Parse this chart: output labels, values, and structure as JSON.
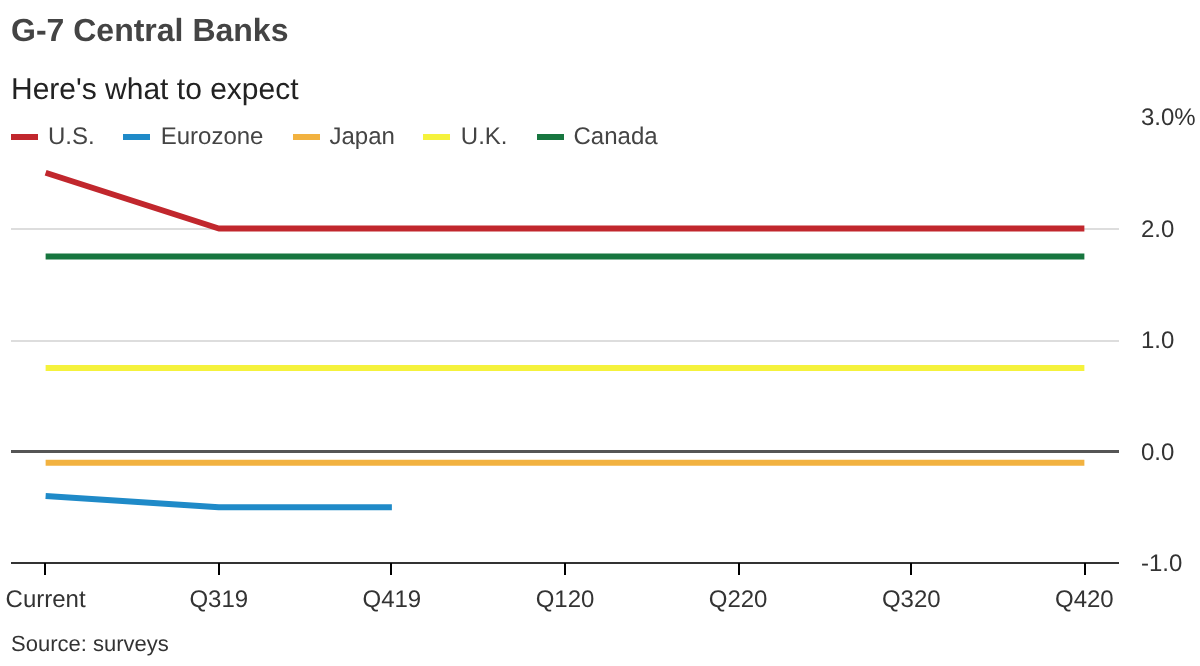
{
  "chart_data": {
    "type": "line",
    "title": "G-7 Central Banks",
    "subtitle": "Here's what to expect",
    "categories": [
      "Current",
      "Q319",
      "Q419",
      "Q120",
      "Q220",
      "Q320",
      "Q420"
    ],
    "series": [
      {
        "name": "U.S.",
        "color": "#c1272d",
        "values": [
          2.5,
          2.0,
          2.0,
          2.0,
          2.0,
          2.0,
          2.0
        ]
      },
      {
        "name": "Eurozone",
        "color": "#1f8ac8",
        "values": [
          -0.4,
          -0.5,
          -0.5,
          null,
          null,
          null,
          null
        ]
      },
      {
        "name": "Japan",
        "color": "#f2b240",
        "values": [
          -0.1,
          -0.1,
          -0.1,
          -0.1,
          -0.1,
          -0.1,
          -0.1
        ]
      },
      {
        "name": "U.K.",
        "color": "#f5f23c",
        "values": [
          0.75,
          0.75,
          0.75,
          0.75,
          0.75,
          0.75,
          0.75
        ]
      },
      {
        "name": "Canada",
        "color": "#17763f",
        "values": [
          1.75,
          1.75,
          1.75,
          1.75,
          1.75,
          1.75,
          1.75
        ]
      }
    ],
    "ylim": [
      -1,
      3
    ],
    "yticks": [
      {
        "value": 3,
        "label": "3.0%"
      },
      {
        "value": 2,
        "label": "2.0"
      },
      {
        "value": 1,
        "label": "1.0"
      },
      {
        "value": 0,
        "label": "0.0"
      },
      {
        "value": -1,
        "label": "-1.0"
      }
    ],
    "ref_lines": [
      {
        "axis": "y",
        "value": 0,
        "color": "#555555"
      }
    ],
    "grid": "y",
    "legend": "top left",
    "marker": "none",
    "line_style": "solid",
    "annotations": [
      "Source: surveys"
    ]
  }
}
